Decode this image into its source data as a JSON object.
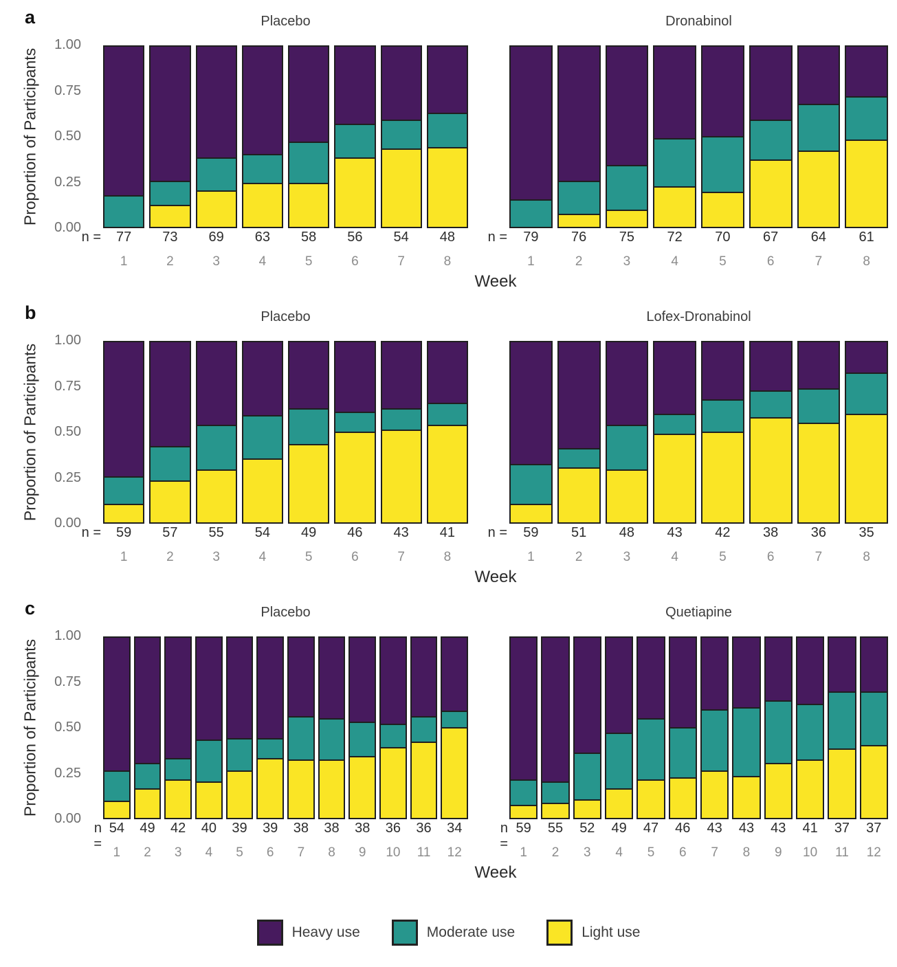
{
  "y_axis": {
    "label": "Proportion of Participants",
    "ticks": [
      "1.00",
      "0.75",
      "0.50",
      "0.25",
      "0.00"
    ]
  },
  "x_axis": {
    "label": "Week"
  },
  "n_prefix": "n =",
  "legend": {
    "position": "bottom",
    "items": [
      {
        "label": "Heavy use",
        "color": "#471a5e"
      },
      {
        "label": "Moderate use",
        "color": "#27968d"
      },
      {
        "label": "Light use",
        "color": "#fae525"
      }
    ]
  },
  "panels": [
    {
      "label": "a",
      "charts": [
        0,
        1
      ]
    },
    {
      "label": "b",
      "charts": [
        2,
        3
      ]
    },
    {
      "label": "c",
      "charts": [
        4,
        5
      ]
    }
  ],
  "chart_data": [
    {
      "type": "bar",
      "stacked": true,
      "panel": "a",
      "title": "Placebo",
      "xlabel": "Week",
      "ylabel": "Proportion of Participants",
      "ylim": [
        0,
        1
      ],
      "categories": [
        1,
        2,
        3,
        4,
        5,
        6,
        7,
        8
      ],
      "n": [
        77,
        73,
        69,
        63,
        58,
        56,
        54,
        48
      ],
      "series": [
        {
          "name": "Light use",
          "values": [
            0.0,
            0.12,
            0.2,
            0.24,
            0.24,
            0.38,
            0.43,
            0.44
          ]
        },
        {
          "name": "Moderate use",
          "values": [
            0.17,
            0.13,
            0.18,
            0.16,
            0.23,
            0.19,
            0.16,
            0.19
          ]
        },
        {
          "name": "Heavy use",
          "values": [
            0.83,
            0.75,
            0.62,
            0.6,
            0.53,
            0.43,
            0.41,
            0.37
          ]
        }
      ]
    },
    {
      "type": "bar",
      "stacked": true,
      "panel": "a",
      "title": "Dronabinol",
      "xlabel": "Week",
      "ylabel": "Proportion of Participants",
      "ylim": [
        0,
        1
      ],
      "categories": [
        1,
        2,
        3,
        4,
        5,
        6,
        7,
        8
      ],
      "n": [
        79,
        76,
        75,
        72,
        70,
        67,
        64,
        61
      ],
      "series": [
        {
          "name": "Light use",
          "values": [
            0.0,
            0.07,
            0.09,
            0.22,
            0.19,
            0.37,
            0.42,
            0.48
          ]
        },
        {
          "name": "Moderate use",
          "values": [
            0.15,
            0.18,
            0.25,
            0.27,
            0.31,
            0.22,
            0.26,
            0.24
          ]
        },
        {
          "name": "Heavy use",
          "values": [
            0.85,
            0.75,
            0.66,
            0.51,
            0.5,
            0.41,
            0.32,
            0.28
          ]
        }
      ]
    },
    {
      "type": "bar",
      "stacked": true,
      "panel": "b",
      "title": "Placebo",
      "xlabel": "Week",
      "ylabel": "Proportion of Participants",
      "ylim": [
        0,
        1
      ],
      "categories": [
        1,
        2,
        3,
        4,
        5,
        6,
        7,
        8
      ],
      "n": [
        59,
        57,
        55,
        54,
        49,
        46,
        43,
        41
      ],
      "series": [
        {
          "name": "Light use",
          "values": [
            0.1,
            0.23,
            0.29,
            0.35,
            0.43,
            0.5,
            0.51,
            0.54
          ]
        },
        {
          "name": "Moderate use",
          "values": [
            0.15,
            0.19,
            0.25,
            0.24,
            0.2,
            0.11,
            0.12,
            0.12
          ]
        },
        {
          "name": "Heavy use",
          "values": [
            0.75,
            0.58,
            0.46,
            0.41,
            0.37,
            0.39,
            0.37,
            0.34
          ]
        }
      ]
    },
    {
      "type": "bar",
      "stacked": true,
      "panel": "b",
      "title": "Lofex-Dronabinol",
      "xlabel": "Week",
      "ylabel": "Proportion of Participants",
      "ylim": [
        0,
        1
      ],
      "categories": [
        1,
        2,
        3,
        4,
        5,
        6,
        7,
        8
      ],
      "n": [
        59,
        51,
        48,
        43,
        42,
        38,
        36,
        35
      ],
      "series": [
        {
          "name": "Light use",
          "values": [
            0.1,
            0.3,
            0.29,
            0.49,
            0.5,
            0.58,
            0.55,
            0.6
          ]
        },
        {
          "name": "Moderate use",
          "values": [
            0.22,
            0.11,
            0.25,
            0.11,
            0.18,
            0.15,
            0.19,
            0.23
          ]
        },
        {
          "name": "Heavy use",
          "values": [
            0.68,
            0.59,
            0.46,
            0.4,
            0.32,
            0.27,
            0.26,
            0.17
          ]
        }
      ]
    },
    {
      "type": "bar",
      "stacked": true,
      "panel": "c",
      "title": "Placebo",
      "xlabel": "Week",
      "ylabel": "Proportion of Participants",
      "ylim": [
        0,
        1
      ],
      "categories": [
        1,
        2,
        3,
        4,
        5,
        6,
        7,
        8,
        9,
        10,
        11,
        12
      ],
      "n": [
        54,
        49,
        42,
        40,
        39,
        39,
        38,
        38,
        38,
        36,
        36,
        34
      ],
      "series": [
        {
          "name": "Light use",
          "values": [
            0.09,
            0.16,
            0.21,
            0.2,
            0.26,
            0.33,
            0.32,
            0.32,
            0.34,
            0.39,
            0.42,
            0.5
          ]
        },
        {
          "name": "Moderate use",
          "values": [
            0.17,
            0.14,
            0.12,
            0.23,
            0.18,
            0.11,
            0.24,
            0.23,
            0.19,
            0.13,
            0.14,
            0.09
          ]
        },
        {
          "name": "Heavy use",
          "values": [
            0.74,
            0.7,
            0.67,
            0.57,
            0.56,
            0.56,
            0.44,
            0.45,
            0.47,
            0.48,
            0.44,
            0.41
          ]
        }
      ]
    },
    {
      "type": "bar",
      "stacked": true,
      "panel": "c",
      "title": "Quetiapine",
      "xlabel": "Week",
      "ylabel": "Proportion of Participants",
      "ylim": [
        0,
        1
      ],
      "categories": [
        1,
        2,
        3,
        4,
        5,
        6,
        7,
        8,
        9,
        10,
        11,
        12
      ],
      "n": [
        59,
        55,
        52,
        49,
        47,
        46,
        43,
        43,
        43,
        41,
        37,
        37
      ],
      "series": [
        {
          "name": "Light use",
          "values": [
            0.07,
            0.08,
            0.1,
            0.16,
            0.21,
            0.22,
            0.26,
            0.23,
            0.3,
            0.32,
            0.38,
            0.4
          ]
        },
        {
          "name": "Moderate use",
          "values": [
            0.14,
            0.12,
            0.26,
            0.31,
            0.34,
            0.28,
            0.34,
            0.38,
            0.35,
            0.31,
            0.32,
            0.3
          ]
        },
        {
          "name": "Heavy use",
          "values": [
            0.79,
            0.8,
            0.64,
            0.53,
            0.45,
            0.5,
            0.4,
            0.39,
            0.35,
            0.37,
            0.3,
            0.3
          ]
        }
      ]
    }
  ]
}
